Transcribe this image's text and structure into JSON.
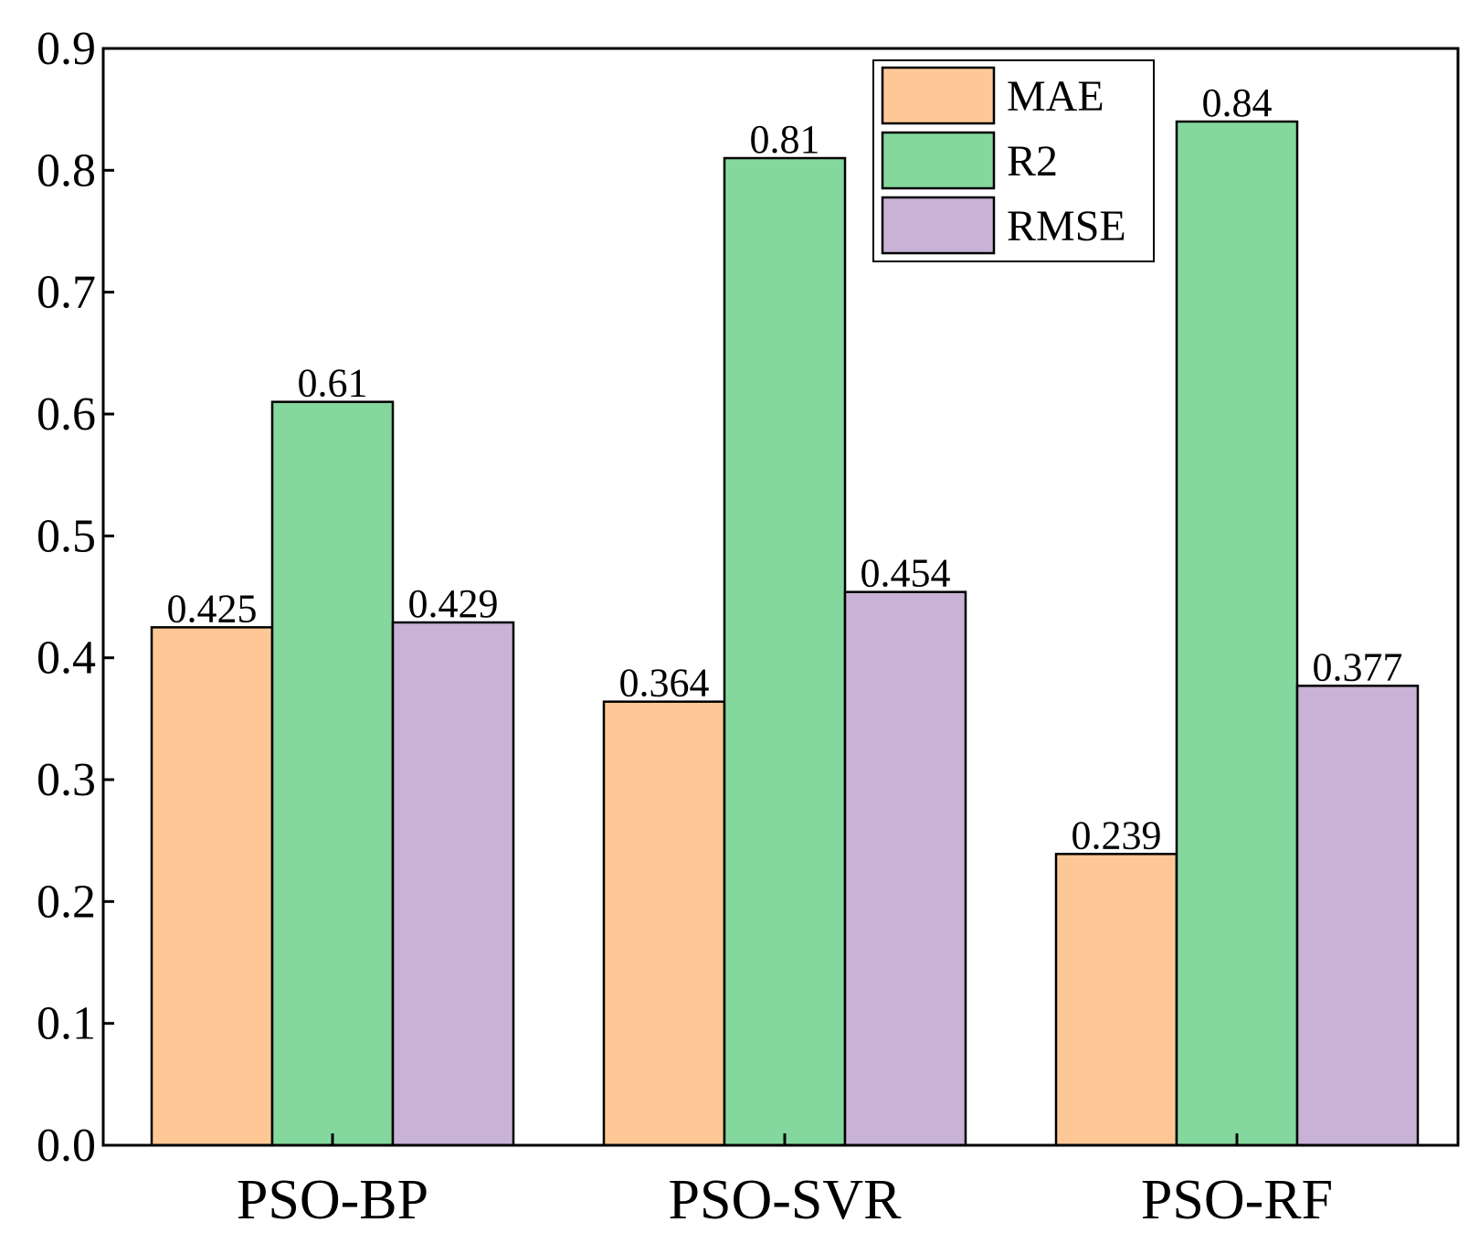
{
  "chart_data": {
    "type": "bar",
    "title": "",
    "xlabel": "",
    "ylabel": "",
    "categories": [
      "PSO-BP",
      "PSO-SVR",
      "PSO-RF"
    ],
    "series": [
      {
        "name": "MAE",
        "color": "#FDC896",
        "values": [
          0.425,
          0.364,
          0.239
        ],
        "labels": [
          "0.425",
          "0.364",
          "0.239"
        ]
      },
      {
        "name": "R2",
        "color": "#84D89E",
        "values": [
          0.61,
          0.81,
          0.84
        ],
        "labels": [
          "0.61",
          "0.81",
          "0.84"
        ]
      },
      {
        "name": "RMSE",
        "color": "#C8B2D6",
        "values": [
          0.429,
          0.454,
          0.377
        ],
        "labels": [
          "0.429",
          "0.454",
          "0.377"
        ]
      }
    ],
    "ylim": [
      0,
      0.9
    ],
    "yticks": [
      "0.0",
      "0.1",
      "0.2",
      "0.3",
      "0.4",
      "0.5",
      "0.6",
      "0.7",
      "0.8",
      "0.9"
    ],
    "grid": false,
    "legend_position": "top-right"
  }
}
